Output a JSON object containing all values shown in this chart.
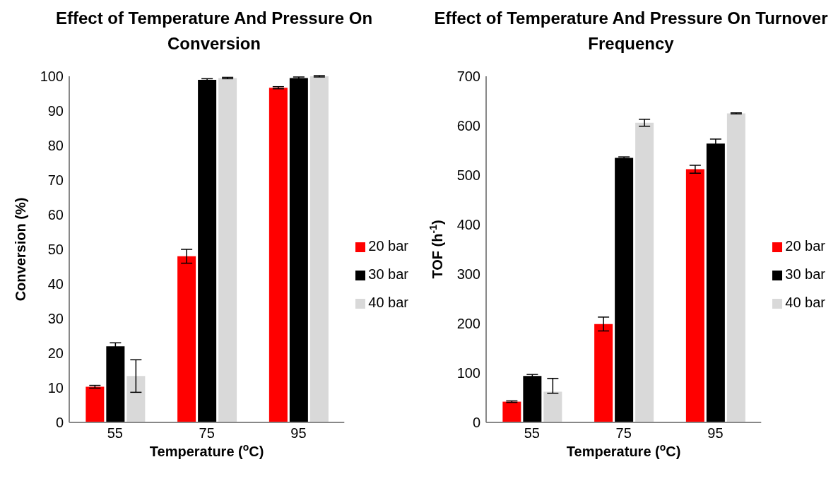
{
  "chart_data": [
    {
      "type": "bar",
      "title": "Effect of Temperature And Pressure On Conversion",
      "xlabel": "Temperature ($^{o}$C)",
      "ylabel": "Conversion (%)",
      "categories": [
        "55",
        "75",
        "95"
      ],
      "series": [
        {
          "name": "20 bar",
          "color": "#ff0000",
          "values": [
            10.3,
            48,
            96.7
          ],
          "errors": [
            0.4,
            2,
            0.3
          ]
        },
        {
          "name": "30 bar",
          "color": "#000000",
          "values": [
            22,
            99,
            99.5
          ],
          "errors": [
            1,
            0.3,
            0.3
          ]
        },
        {
          "name": "40 bar",
          "color": "#d9d9d9",
          "values": [
            13.4,
            99.5,
            100
          ],
          "errors": [
            4.7,
            0.2,
            0.2
          ]
        }
      ],
      "ylim": [
        0,
        100
      ],
      "yticks": [
        0,
        10,
        20,
        30,
        40,
        50,
        60,
        70,
        80,
        90,
        100
      ],
      "grid": false,
      "legend": "right"
    },
    {
      "type": "bar",
      "title": "Effect of Temperature And Pressure On Turnover Frequency",
      "xlabel": "Temperature ($^{o}$C)",
      "ylabel": "TOF (h$^{-1}$)",
      "categories": [
        "55",
        "75",
        "95"
      ],
      "series": [
        {
          "name": "20 bar",
          "color": "#ff0000",
          "values": [
            42,
            199,
            512
          ],
          "errors": [
            1.5,
            14,
            8
          ]
        },
        {
          "name": "30 bar",
          "color": "#000000",
          "values": [
            94,
            535,
            564
          ],
          "errors": [
            3,
            2,
            9
          ]
        },
        {
          "name": "40 bar",
          "color": "#d9d9d9",
          "values": [
            62,
            606,
            625
          ],
          "errors": [
            [
              59,
              89
            ],
            7,
            1
          ]
        }
      ],
      "ylim": [
        0,
        700
      ],
      "yticks": [
        0,
        100,
        200,
        300,
        400,
        500,
        600,
        700
      ],
      "grid": false,
      "legend": "right"
    }
  ]
}
